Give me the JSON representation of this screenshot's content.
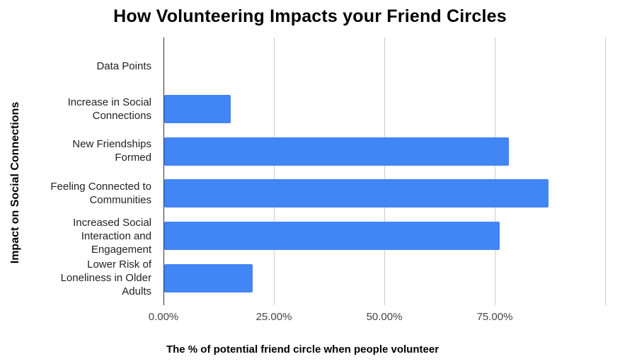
{
  "title": "How Volunteering Impacts your Friend Circles",
  "chart_data": {
    "type": "bar",
    "orientation": "horizontal",
    "title": "How Volunteering Impacts your Friend Circles",
    "xlabel": "The % of potential friend circle when people volunteer",
    "ylabel": "Impact on Social Connections",
    "categories": [
      "Data Points",
      "Increase in Social Connections",
      "New Friendships Formed",
      "Feeling Connected to Communities",
      "Increased Social Interaction and Engagement",
      "Lower Risk of Loneliness in Older Adults"
    ],
    "values": [
      0,
      15,
      78,
      87,
      76,
      20
    ],
    "value_unit": "percent",
    "xlim": [
      0,
      100
    ],
    "xtick_labels": [
      "0.00%",
      "25.00%",
      "50.00%",
      "75.00%"
    ],
    "xtick_values": [
      0,
      25,
      50,
      75
    ],
    "gridline_values": [
      25,
      50,
      75,
      100
    ],
    "grid": true,
    "legend_position": "none",
    "colors": {
      "bar": "#4285f4",
      "gridline": "#cccccc",
      "axis": "#333333",
      "title_text": "#000000",
      "category_text": "#222222",
      "tick_text": "#444444"
    }
  }
}
